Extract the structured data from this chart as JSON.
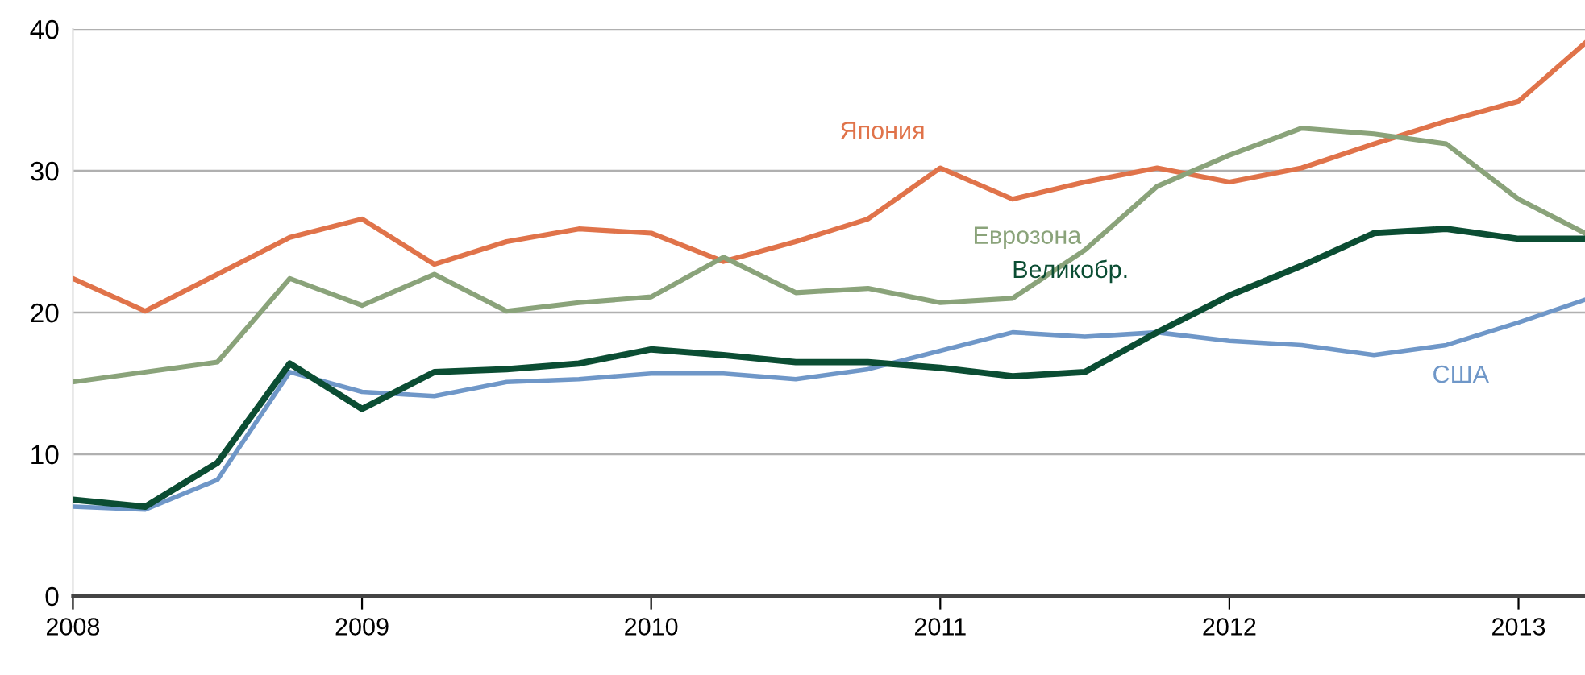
{
  "chart_data": {
    "type": "line",
    "x": [
      2008,
      2008.25,
      2008.5,
      2008.75,
      2009,
      2009.25,
      2009.5,
      2009.75,
      2010,
      2010.25,
      2010.5,
      2010.75,
      2011,
      2011.25,
      2011.5,
      2011.75,
      2012,
      2012.25,
      2012.5,
      2012.75,
      2013,
      2013.23
    ],
    "series": [
      {
        "name": "Япония",
        "color": "#e0734a",
        "values": [
          22.4,
          20.1,
          22.7,
          25.3,
          26.6,
          23.4,
          25.0,
          25.9,
          25.6,
          23.6,
          25.0,
          26.6,
          30.2,
          28.0,
          29.2,
          30.2,
          29.2,
          30.2,
          31.9,
          33.5,
          34.9,
          39.0
        ]
      },
      {
        "name": "Еврозона",
        "color": "#8aa37a",
        "values": [
          15.1,
          null,
          16.5,
          22.4,
          20.5,
          22.7,
          20.1,
          20.7,
          21.1,
          23.9,
          21.4,
          21.7,
          20.7,
          21.0,
          24.4,
          28.9,
          31.1,
          33.0,
          32.6,
          31.9,
          28.0,
          25.6
        ]
      },
      {
        "name": "Великобр.",
        "color": "#0b4d33",
        "values": [
          6.8,
          6.3,
          9.4,
          16.4,
          13.2,
          15.8,
          16.0,
          16.4,
          17.4,
          17.0,
          16.5,
          16.5,
          16.1,
          15.5,
          15.8,
          18.6,
          21.2,
          23.3,
          25.6,
          25.9,
          25.2,
          25.2
        ]
      },
      {
        "name": "США",
        "color": "#6f97c8",
        "values": [
          6.3,
          6.1,
          8.2,
          15.8,
          14.4,
          14.1,
          15.1,
          15.3,
          15.7,
          15.7,
          15.3,
          16.0,
          17.3,
          18.6,
          18.3,
          18.6,
          18.0,
          17.7,
          17.0,
          17.7,
          19.3,
          20.9
        ]
      }
    ],
    "xlim": [
      2008,
      2013.23
    ],
    "xticks": [
      2008,
      2009,
      2010,
      2011,
      2012,
      2013
    ],
    "ylim": [
      0,
      40
    ],
    "yticks": [
      0,
      10,
      20,
      30,
      40
    ],
    "grid": "y",
    "legend": false,
    "line_style": "solid",
    "marker": "none"
  }
}
